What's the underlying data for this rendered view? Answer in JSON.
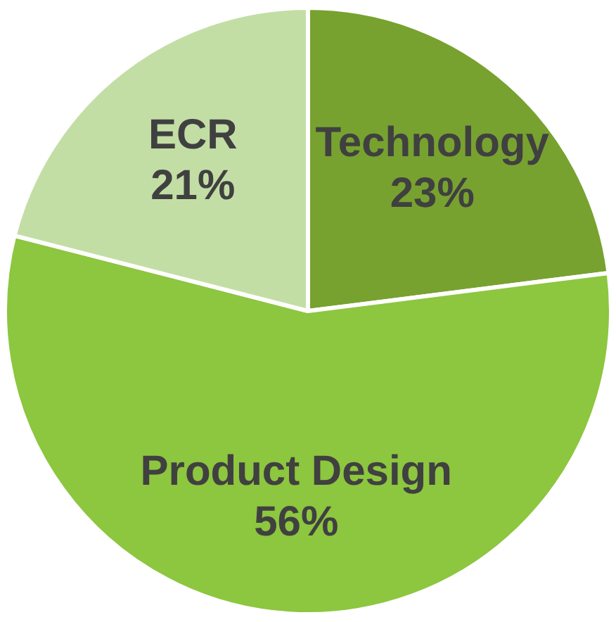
{
  "chart_data": {
    "type": "pie",
    "categories": [
      "Technology",
      "Product Design",
      "ECR"
    ],
    "values": [
      23,
      56,
      21
    ],
    "colors": [
      "#77a22f",
      "#8dc63f",
      "#c2dea5"
    ],
    "legend": false,
    "value_labels": [
      "23%",
      "56%",
      "21%"
    ]
  }
}
